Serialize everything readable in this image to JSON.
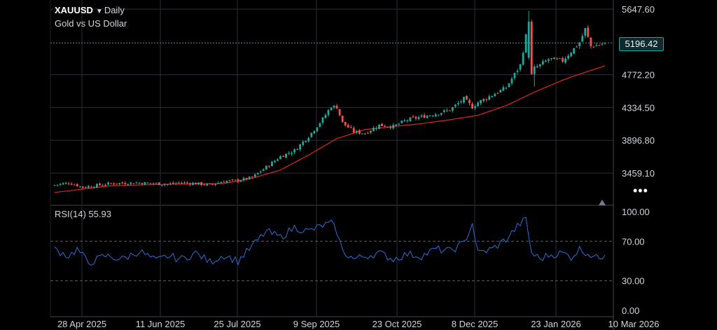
{
  "header": {
    "symbol": "XAUUSD",
    "interval": "Daily",
    "description": "Gold vs US Dollar"
  },
  "price_axis": {
    "ticks": [
      "5647.60",
      "5196.42",
      "4772.20",
      "4334.50",
      "3896.80",
      "3459.10"
    ]
  },
  "rsi_axis": {
    "ticks": [
      "100.00",
      "70.00",
      "30.00",
      "0.00"
    ]
  },
  "rsi_label": "RSI(14) 55.93",
  "last_price": "5196.42",
  "date_labels": [
    "28 Apr 2025",
    "11 Jun 2025",
    "25 Jul 2025",
    "9 Sep 2025",
    "23 Oct 2025",
    "8 Dec 2025",
    "23 Jan 2026",
    "10 Mar 2026"
  ],
  "more_icon": "•••",
  "colors": {
    "up": "#26a69a",
    "down": "#ef5350",
    "ma": "#e02424",
    "rsi": "#2f6fd6",
    "grid": "#2a2e39"
  },
  "chart_data": [
    {
      "type": "candlestick",
      "title": "XAUUSD Daily",
      "series": [
        {
          "name": "XAUUSD",
          "anchors_close": [
            [
              0,
              3300
            ],
            [
              5,
              3330
            ],
            [
              10,
              3270
            ],
            [
              20,
              3320
            ],
            [
              30,
              3330
            ],
            [
              40,
              3310
            ],
            [
              45,
              3330
            ],
            [
              50,
              3320
            ],
            [
              55,
              3300
            ],
            [
              60,
              3350
            ],
            [
              65,
              3360
            ],
            [
              70,
              3400
            ],
            [
              75,
              3540
            ],
            [
              80,
              3680
            ],
            [
              85,
              3760
            ],
            [
              90,
              3950
            ],
            [
              95,
              4180
            ],
            [
              98,
              4350
            ],
            [
              100,
              4340
            ],
            [
              102,
              4130
            ],
            [
              106,
              4010
            ],
            [
              110,
              3990
            ],
            [
              115,
              4100
            ],
            [
              120,
              4080
            ],
            [
              125,
              4170
            ],
            [
              130,
              4210
            ],
            [
              135,
              4250
            ],
            [
              140,
              4300
            ],
            [
              145,
              4450
            ],
            [
              148,
              4340
            ],
            [
              150,
              4400
            ],
            [
              155,
              4500
            ],
            [
              160,
              4600
            ],
            [
              165,
              4900
            ],
            [
              168,
              5480
            ],
            [
              170,
              4860
            ],
            [
              172,
              4900
            ],
            [
              175,
              4980
            ],
            [
              180,
              4960
            ],
            [
              183,
              5080
            ],
            [
              186,
              5200
            ],
            [
              188,
              5380
            ],
            [
              190,
              5150
            ],
            [
              193,
              5170
            ],
            [
              195,
              5196
            ]
          ]
        }
      ],
      "moving_average_anchors": [
        [
          0,
          3200
        ],
        [
          20,
          3290
        ],
        [
          40,
          3310
        ],
        [
          60,
          3320
        ],
        [
          70,
          3390
        ],
        [
          80,
          3500
        ],
        [
          90,
          3700
        ],
        [
          100,
          3920
        ],
        [
          110,
          4040
        ],
        [
          120,
          4080
        ],
        [
          130,
          4120
        ],
        [
          140,
          4170
        ],
        [
          150,
          4230
        ],
        [
          160,
          4360
        ],
        [
          165,
          4450
        ],
        [
          170,
          4540
        ],
        [
          175,
          4620
        ],
        [
          180,
          4700
        ],
        [
          186,
          4780
        ],
        [
          195,
          4890
        ]
      ],
      "ylim": [
        3250,
        5700
      ],
      "grid": true
    },
    {
      "type": "line",
      "title": "RSI(14)",
      "rsi_anchors": [
        [
          0,
          62
        ],
        [
          5,
          55
        ],
        [
          8,
          62
        ],
        [
          12,
          48
        ],
        [
          18,
          55
        ],
        [
          24,
          52
        ],
        [
          30,
          60
        ],
        [
          36,
          50
        ],
        [
          40,
          55
        ],
        [
          45,
          52
        ],
        [
          50,
          58
        ],
        [
          55,
          49
        ],
        [
          60,
          56
        ],
        [
          65,
          50
        ],
        [
          70,
          65
        ],
        [
          75,
          80
        ],
        [
          80,
          74
        ],
        [
          85,
          84
        ],
        [
          90,
          80
        ],
        [
          95,
          86
        ],
        [
          98,
          88
        ],
        [
          100,
          80
        ],
        [
          102,
          60
        ],
        [
          106,
          52
        ],
        [
          110,
          55
        ],
        [
          115,
          58
        ],
        [
          120,
          52
        ],
        [
          125,
          57
        ],
        [
          130,
          55
        ],
        [
          135,
          62
        ],
        [
          140,
          60
        ],
        [
          145,
          68
        ],
        [
          148,
          88
        ],
        [
          150,
          58
        ],
        [
          155,
          62
        ],
        [
          160,
          72
        ],
        [
          165,
          88
        ],
        [
          167,
          92
        ],
        [
          169,
          58
        ],
        [
          172,
          52
        ],
        [
          175,
          56
        ],
        [
          180,
          58
        ],
        [
          183,
          54
        ],
        [
          186,
          62
        ],
        [
          189,
          58
        ],
        [
          192,
          53
        ],
        [
          195,
          55.93
        ]
      ],
      "ylim": [
        0,
        100
      ],
      "levels": [
        70,
        30
      ]
    }
  ]
}
